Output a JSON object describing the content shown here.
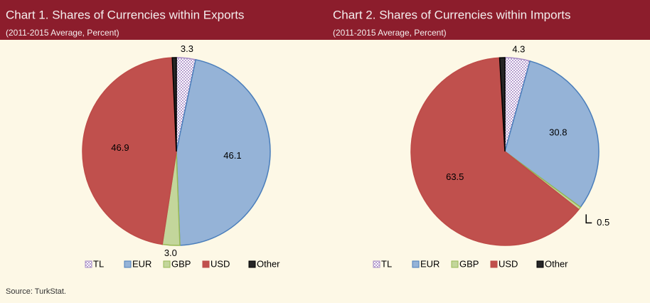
{
  "source": "Source: TurkStat.",
  "chart_data": [
    {
      "type": "pie",
      "title": "Chart 1. Shares of Currencies within Exports",
      "subtitle": "(2011-2015 Average, Percent)",
      "categories": [
        "TL",
        "EUR",
        "GBP",
        "USD",
        "Other"
      ],
      "values": [
        3.3,
        46.1,
        3.0,
        46.9,
        0.7
      ],
      "value_labels": [
        "3.3",
        "46.1",
        "3.0",
        "46.9",
        null
      ],
      "colors": [
        "#c9b3dc",
        "#95b3d7",
        "#c3d69b",
        "#c0504d",
        "#262626"
      ]
    },
    {
      "type": "pie",
      "title": "Chart 2. Shares of Currencies within Imports",
      "subtitle": "(2011-2015 Average, Percent)",
      "categories": [
        "TL",
        "EUR",
        "GBP",
        "USD",
        "Other"
      ],
      "values": [
        4.3,
        30.8,
        0.5,
        63.5,
        0.9
      ],
      "value_labels": [
        "4.3",
        "30.8",
        "0.5",
        "63.5",
        null
      ],
      "colors": [
        "#c9b3dc",
        "#95b3d7",
        "#c3d69b",
        "#c0504d",
        "#262626"
      ]
    }
  ]
}
